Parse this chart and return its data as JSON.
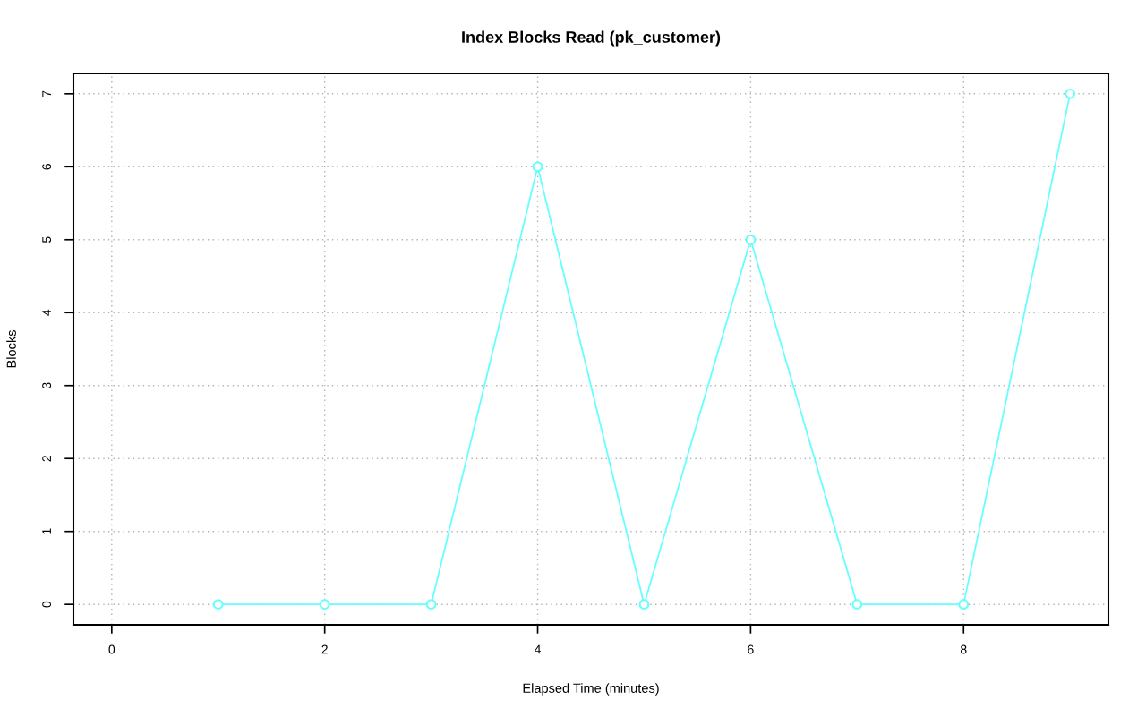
{
  "chart_data": {
    "type": "line",
    "title": "Index Blocks Read (pk_customer)",
    "xlabel": "Elapsed Time (minutes)",
    "ylabel": "Blocks",
    "x": [
      1,
      2,
      3,
      4,
      5,
      6,
      7,
      8,
      9
    ],
    "series": [
      {
        "color": "#66ffff",
        "values": [
          0,
          0,
          0,
          6,
          0,
          5,
          0,
          0,
          7
        ]
      }
    ],
    "xlim": [
      -0.36,
      9.36
    ],
    "xticks": [
      0,
      2,
      4,
      6,
      8
    ],
    "ylim": [
      -0.28,
      7.28
    ],
    "yticks": [
      0,
      1,
      2,
      3,
      4,
      5,
      6,
      7
    ],
    "grid": true,
    "marker": "circle",
    "line_style": "solid"
  }
}
